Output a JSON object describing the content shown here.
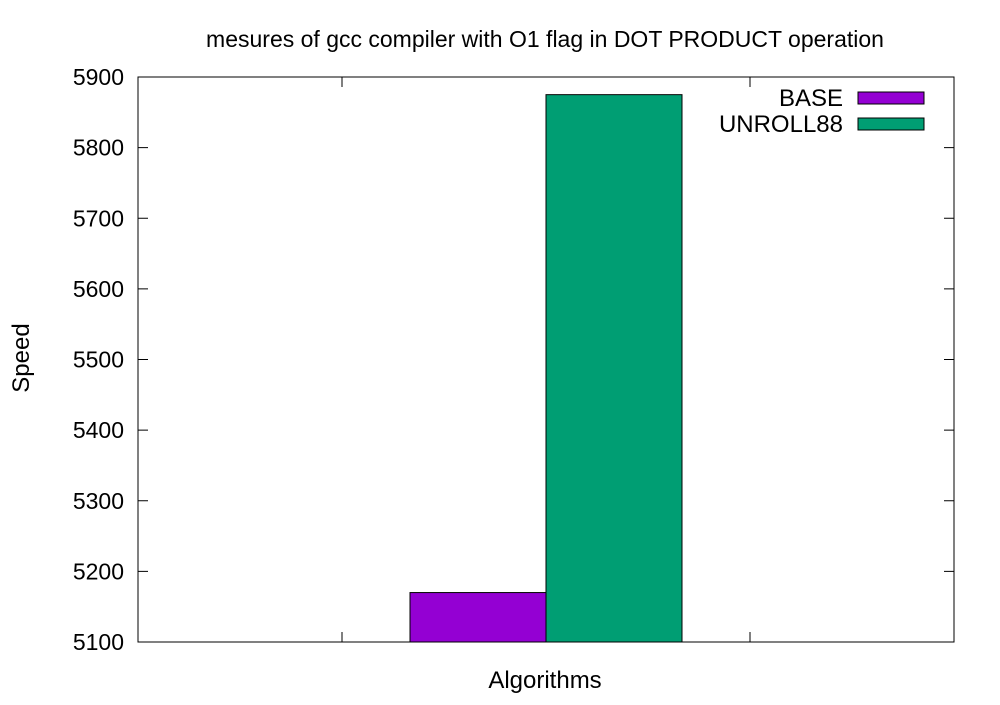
{
  "chart_data": {
    "type": "bar",
    "title": "mesures of gcc compiler with O1 flag in DOT PRODUCT operation",
    "xlabel": "Algorithms",
    "ylabel": "Speed",
    "ylim": [
      5100,
      5900
    ],
    "yticks": [
      5100,
      5200,
      5300,
      5400,
      5500,
      5600,
      5700,
      5800,
      5900
    ],
    "grid": false,
    "legend_position": "top-right",
    "categories": [
      ""
    ],
    "series": [
      {
        "name": "BASE",
        "values": [
          5170
        ],
        "color": "#9400d3"
      },
      {
        "name": "UNROLL88",
        "values": [
          5875
        ],
        "color": "#009e73"
      }
    ]
  }
}
